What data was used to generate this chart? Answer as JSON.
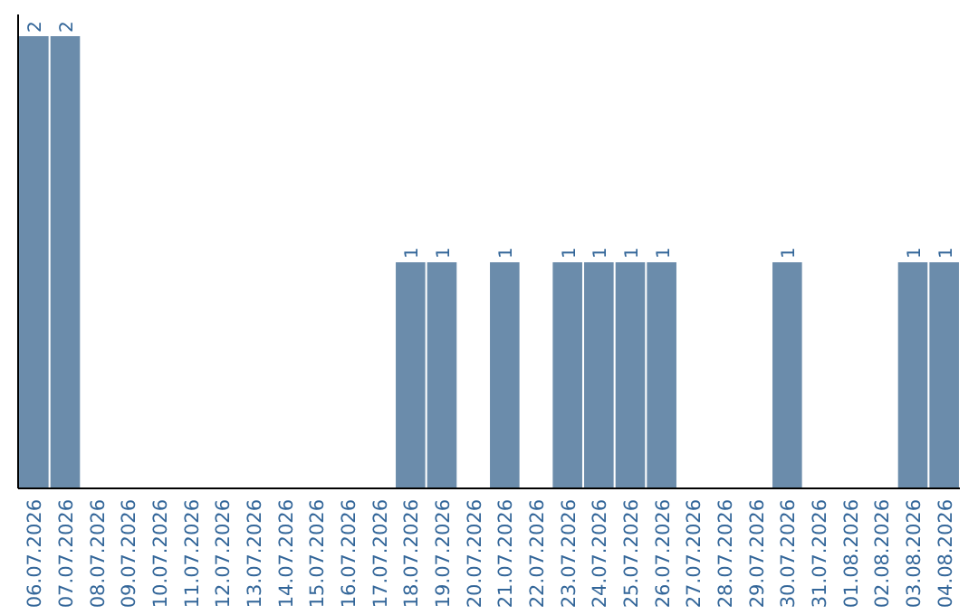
{
  "chart_data": {
    "type": "bar",
    "categories": [
      "06.07.2026",
      "07.07.2026",
      "08.07.2026",
      "09.07.2026",
      "10.07.2026",
      "11.07.2026",
      "12.07.2026",
      "13.07.2026",
      "14.07.2026",
      "15.07.2026",
      "16.07.2026",
      "17.07.2026",
      "18.07.2026",
      "19.07.2026",
      "20.07.2026",
      "21.07.2026",
      "22.07.2026",
      "23.07.2026",
      "24.07.2026",
      "25.07.2026",
      "26.07.2026",
      "27.07.2026",
      "28.07.2026",
      "29.07.2026",
      "30.07.2026",
      "31.07.2026",
      "01.08.2026",
      "02.08.2026",
      "03.08.2026",
      "04.08.2026"
    ],
    "values": [
      2,
      2,
      0,
      0,
      0,
      0,
      0,
      0,
      0,
      0,
      0,
      0,
      1,
      1,
      0,
      1,
      0,
      1,
      1,
      1,
      1,
      0,
      0,
      0,
      1,
      0,
      0,
      0,
      1,
      1
    ],
    "value_labels": [
      "2",
      "2",
      null,
      null,
      null,
      null,
      null,
      null,
      null,
      null,
      null,
      null,
      "1",
      "1",
      null,
      "1",
      null,
      "1",
      "1",
      "1",
      "1",
      null,
      null,
      null,
      "1",
      null,
      null,
      null,
      "1",
      "1"
    ],
    "color": "#6b8cab"
  }
}
